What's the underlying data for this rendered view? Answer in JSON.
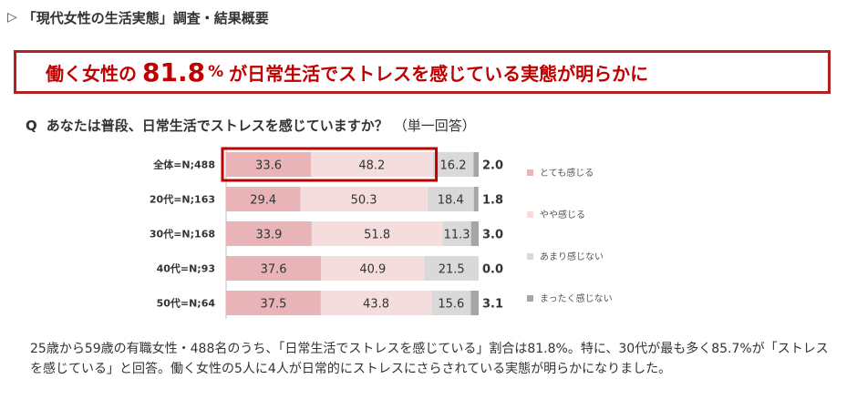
{
  "section": {
    "marker": "▷",
    "title": "「現代女性の生活実態」調査・結果概要"
  },
  "headline": {
    "prefix": "働く女性の",
    "number": "81.8",
    "unit": "%",
    "suffix": "が日常生活でストレスを感じている実態が明らかに"
  },
  "question": {
    "label": "Q",
    "text": "あなたは普段、日常生活でストレスを感じていますか？",
    "note": "（単一回答）"
  },
  "chart_data": {
    "type": "bar",
    "stacked": true,
    "orientation": "horizontal",
    "categories": [
      "全体=N;488",
      "20代=N;163",
      "30代=N;168",
      "40代=N;93",
      "50代=N;64"
    ],
    "series": [
      {
        "name": "とても感じる",
        "values": [
          33.6,
          29.4,
          33.9,
          37.6,
          37.5
        ],
        "color": "#e8b4b8"
      },
      {
        "name": "やや感じる",
        "values": [
          48.2,
          50.3,
          51.8,
          40.9,
          43.8
        ],
        "color": "#f5dcdd"
      },
      {
        "name": "あまり感じない",
        "values": [
          16.2,
          18.4,
          11.3,
          21.5,
          15.6
        ],
        "color": "#d9d9d9"
      },
      {
        "name": "まったく感じない",
        "values": [
          2.0,
          1.8,
          3.0,
          0.0,
          3.1
        ],
        "color": "#a6a6a6"
      }
    ],
    "value_labels": [
      [
        "33.6",
        "48.2",
        "16.2",
        "2.0"
      ],
      [
        "29.4",
        "50.3",
        "18.4",
        "1.8"
      ],
      [
        "33.9",
        "51.8",
        "11.3",
        "3.0"
      ],
      [
        "37.6",
        "40.9",
        "21.5",
        "0.0"
      ],
      [
        "37.5",
        "43.8",
        "15.6",
        "3.1"
      ]
    ],
    "xlim": [
      0,
      100
    ],
    "legend_position": "right",
    "highlight": {
      "category_index": 0,
      "series": [
        0,
        1
      ],
      "color": "#c00000"
    }
  },
  "summary": "25歳から59歳の有職女性・488名のうち、「日常生活でストレスを感じている」割合は81.8%。特に、30代が最も多く85.7%が「ストレスを感じている」と回答。働く女性の5人に4人が日常的にストレスにさらされている実態が明らかになりました。"
}
